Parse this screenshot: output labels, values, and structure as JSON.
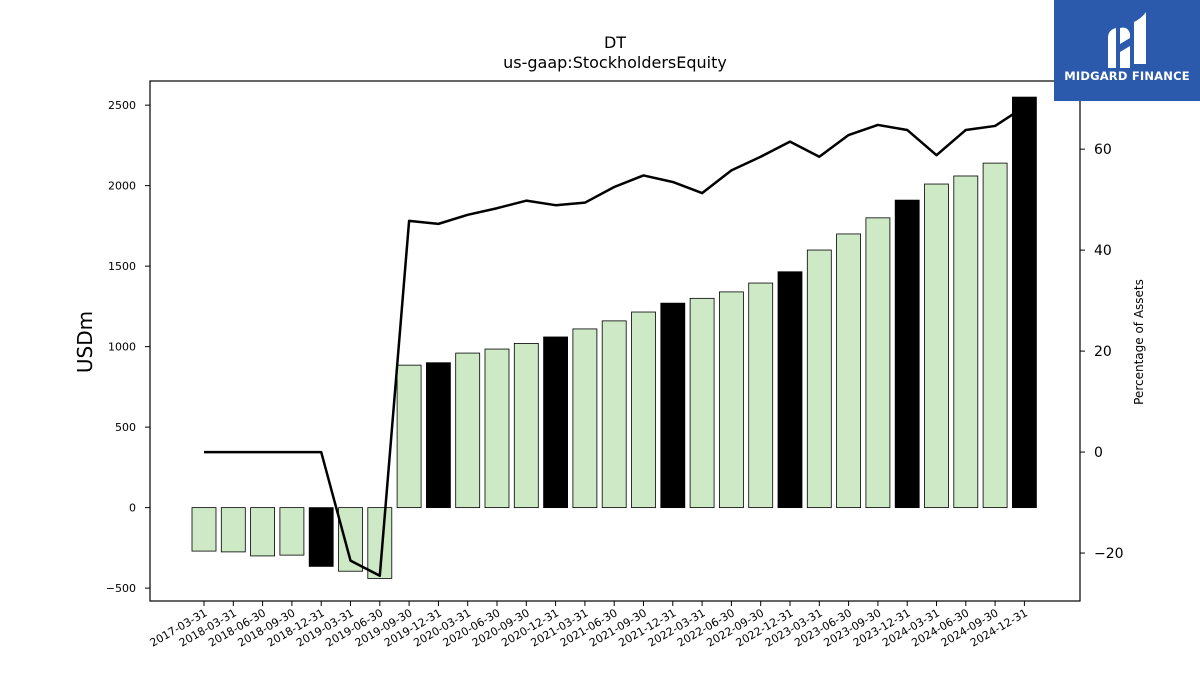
{
  "chart_data": {
    "type": "bar",
    "title": "DT",
    "subtitle": "us-gaap:StockholdersEquity",
    "ylabel": "USDm",
    "y2label": "Percentage of Assets",
    "ylim": [
      -580,
      2650
    ],
    "y2lim": [
      -29.5,
      73.5
    ],
    "yticks": [
      -500,
      0,
      500,
      1000,
      1500,
      2000,
      2500
    ],
    "y2ticks": [
      -20,
      0,
      20,
      40,
      60
    ],
    "categories": [
      "2017-03-31",
      "2018-03-31",
      "2018-06-30",
      "2018-09-30",
      "2018-12-31",
      "2019-03-31",
      "2019-06-30",
      "2019-09-30",
      "2019-12-31",
      "2020-03-31",
      "2020-06-30",
      "2020-09-30",
      "2020-12-31",
      "2021-03-31",
      "2021-06-30",
      "2021-09-30",
      "2021-12-31",
      "2022-03-31",
      "2022-06-30",
      "2022-09-30",
      "2022-12-31",
      "2023-03-31",
      "2023-06-30",
      "2023-09-30",
      "2023-12-31",
      "2024-03-31",
      "2024-06-30",
      "2024-09-30",
      "2024-12-31"
    ],
    "series": [
      {
        "type": "bar",
        "axis": "left",
        "values": [
          -270,
          -275,
          -300,
          -295,
          -365,
          -395,
          -440,
          885,
          900,
          960,
          985,
          1020,
          1060,
          1110,
          1160,
          1215,
          1270,
          1300,
          1340,
          1395,
          1465,
          1600,
          1700,
          1800,
          1910,
          2010,
          2060,
          2140,
          2550
        ],
        "annual": [
          false,
          false,
          false,
          false,
          true,
          false,
          false,
          false,
          true,
          false,
          false,
          false,
          true,
          false,
          false,
          false,
          true,
          false,
          false,
          false,
          true,
          false,
          false,
          false,
          true,
          false,
          false,
          false,
          true
        ]
      },
      {
        "type": "line",
        "axis": "right",
        "values": [
          0,
          0,
          0,
          0,
          0,
          -21.5,
          -24.5,
          45.8,
          45.2,
          47.0,
          48.3,
          49.8,
          48.9,
          49.4,
          52.5,
          54.8,
          53.5,
          51.3,
          55.8,
          58.5,
          61.5,
          58.5,
          62.8,
          64.8,
          63.8,
          58.8,
          63.8,
          64.6,
          68.4
        ]
      }
    ],
    "colors": {
      "bar_quarter": "#cde9c5",
      "bar_annual": "#000000",
      "line": "#000000"
    },
    "grid": false
  },
  "logo": {
    "text": "MIDGARD FINANCE"
  }
}
